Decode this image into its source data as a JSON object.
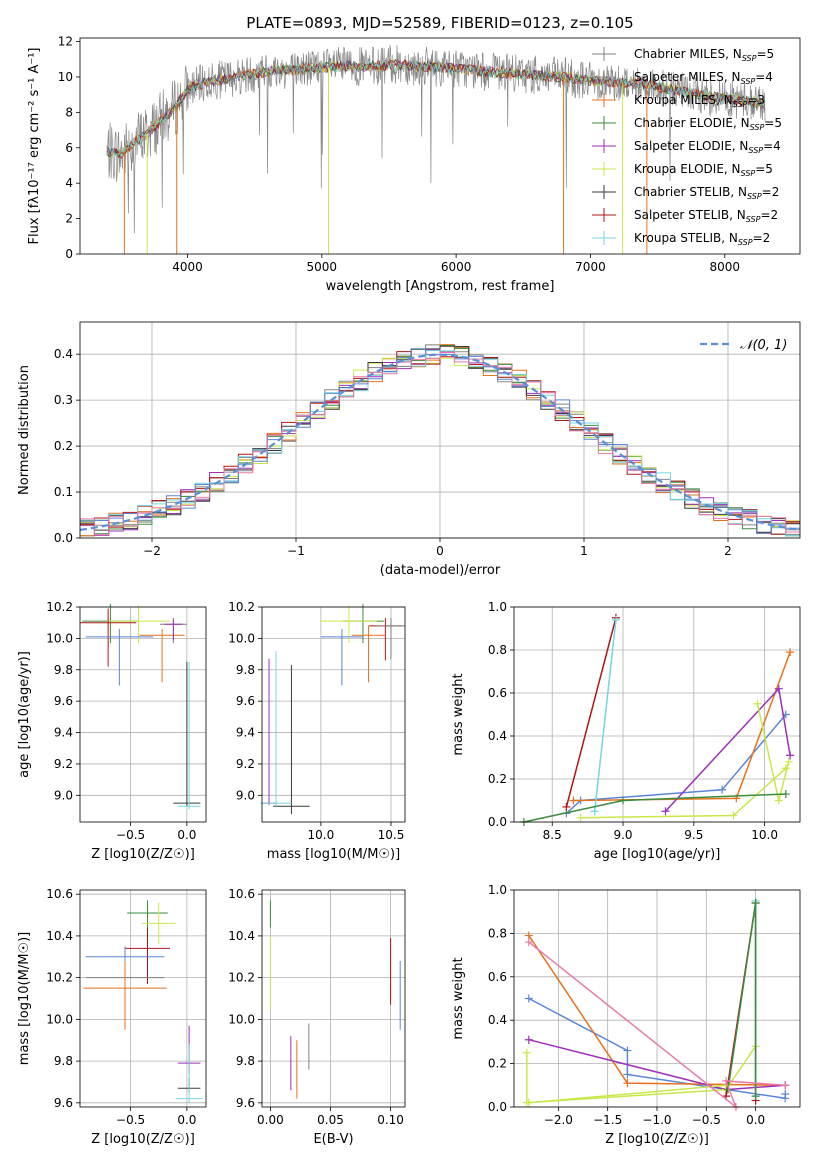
{
  "figure": {
    "title": "PLATE=0893, MJD=52589, FIBERID=0123, z=0.105"
  },
  "colors": {
    "series": [
      "#7f7f7f",
      "#8c8c8c",
      "#e8721c",
      "#3d8c3d",
      "#9e2fb8",
      "#c8e84a",
      "#3a3a3a",
      "#b01515",
      "#74d6e0"
    ],
    "extra_pink": "#e87aa8",
    "extra_blue": "#5b86d6",
    "gaussian": "#5b8fd6"
  },
  "chart_data": [
    {
      "id": "spectrum",
      "type": "line",
      "title": "PLATE=0893, MJD=52589, FIBERID=0123, z=0.105",
      "xlabel": "wavelength [Angstrom, rest frame]",
      "ylabel": "Flux [fλ10⁻¹⁷ erg cm⁻² s⁻¹ A⁻¹]",
      "xlim": [
        3200,
        8560
      ],
      "ylim": [
        0,
        12.2
      ],
      "xticks": [
        4000,
        5000,
        6000,
        7000,
        8000
      ],
      "yticks": [
        0,
        2,
        4,
        6,
        8,
        10,
        12
      ],
      "grid": false,
      "legend_position": "right",
      "continuum_x": [
        3400,
        3500,
        3600,
        3700,
        3800,
        3900,
        4000,
        4100,
        4200,
        4300,
        4400,
        4500,
        4600,
        4700,
        4800,
        4900,
        5000,
        5100,
        5200,
        5300,
        5400,
        5500,
        5600,
        5700,
        5800,
        5900,
        6000,
        6200,
        6400,
        6600,
        6800,
        7000,
        7200,
        7400,
        7600,
        7800,
        8000,
        8200,
        8300
      ],
      "continuum_y": [
        5.8,
        5.6,
        6.3,
        6.8,
        7.5,
        8.2,
        9.3,
        9.6,
        9.8,
        9.9,
        10.1,
        10.2,
        10.3,
        10.4,
        10.4,
        10.5,
        10.5,
        10.6,
        10.6,
        10.6,
        10.6,
        10.7,
        10.7,
        10.6,
        10.6,
        10.5,
        10.5,
        10.3,
        10.2,
        10.1,
        10.0,
        9.8,
        9.7,
        9.6,
        9.3,
        9.0,
        8.8,
        8.6,
        8.5
      ],
      "legend": [
        "Chabrier MILES, N_SSP=5",
        "Salpeter MILES, N_SSP=4",
        "Kroupa MILES, N_SSP=3",
        "Chabrier ELODIE, N_SSP=5",
        "Salpeter ELODIE, N_SSP=4",
        "Kroupa ELODIE, N_SSP=5",
        "Chabrier STELIB, N_SSP=2",
        "Salpeter STELIB, N_SSP=2",
        "Kroupa STELIB, N_SSP=2"
      ]
    },
    {
      "id": "residuals",
      "type": "line",
      "xlabel": "(data-model)/error",
      "ylabel": "Normed distribution",
      "xlim": [
        -2.5,
        2.5
      ],
      "ylim": [
        0,
        0.47
      ],
      "xticks": [
        -2,
        -1,
        0,
        1,
        2
      ],
      "yticks": [
        0.0,
        0.1,
        0.2,
        0.3,
        0.4
      ],
      "grid": true,
      "legend_label": "𝒩(0, 1)",
      "legend_position": "top-right",
      "gaussian": {
        "mean": 0,
        "sigma": 1
      },
      "histogram_bin_width": 0.1
    },
    {
      "id": "age-vs-Z",
      "type": "scatter",
      "xlabel": "Z [log10(Z/Z☉)]",
      "ylabel": "age [log10(age/yr)]",
      "xlim": [
        -0.95,
        0.17
      ],
      "ylim": [
        8.83,
        10.2
      ],
      "xticks": [
        -0.5,
        0.0
      ],
      "yticks": [
        9.0,
        9.2,
        9.4,
        9.6,
        9.8,
        10.0,
        10.2
      ],
      "grid": true,
      "points": [
        {
          "x": -0.68,
          "y": 10.11,
          "xerr": 0.25,
          "yerr": [
            0.14,
            0.11
          ]
        },
        {
          "x": -0.43,
          "y": 10.11,
          "xerr": 0.28,
          "yerr": [
            0.14,
            0.1
          ]
        },
        {
          "x": -0.7,
          "y": 10.1,
          "xerr": 0.25,
          "yerr": [
            0.28,
            0.09
          ]
        },
        {
          "x": -0.6,
          "y": 10.01,
          "xerr": 0.3,
          "yerr": [
            0.31,
            0.05
          ]
        },
        {
          "x": -0.12,
          "y": 10.09,
          "xerr": 0.12,
          "yerr": [
            0.12,
            0.04
          ]
        },
        {
          "x": -0.22,
          "y": 10.02,
          "xerr": 0.2,
          "yerr": [
            0.3,
            0.04
          ]
        },
        {
          "x": -0.12,
          "y": 10.09,
          "xerr": 0.08,
          "yerr": [
            0.1,
            0.03
          ]
        },
        {
          "x": 0.0,
          "y": 8.95,
          "xerr": 0.12,
          "yerr": [
            0.02,
            0.9
          ]
        },
        {
          "x": 0.02,
          "y": 8.93,
          "xerr": 0.1,
          "yerr": [
            0.02,
            0.92
          ]
        }
      ]
    },
    {
      "id": "age-vs-mass",
      "type": "scatter",
      "xlabel": "mass [log10(M/M☉)]",
      "ylabel": "",
      "xlim": [
        9.58,
        10.6
      ],
      "ylim": [
        8.83,
        10.2
      ],
      "xticks": [
        10.0,
        10.5
      ],
      "yticks": [
        9.0,
        9.2,
        9.4,
        9.6,
        9.8,
        10.0,
        10.2
      ],
      "grid": true,
      "points": [
        {
          "x": 10.3,
          "y": 10.11,
          "xerr": 0.15,
          "yerr": [
            0.14,
            0.11
          ]
        },
        {
          "x": 10.2,
          "y": 10.11,
          "xerr": 0.2,
          "yerr": [
            0.14,
            0.1
          ]
        },
        {
          "x": 10.46,
          "y": 10.08,
          "xerr": 0.12,
          "yerr": [
            0.22,
            0.05
          ]
        },
        {
          "x": 10.15,
          "y": 10.01,
          "xerr": 0.15,
          "yerr": [
            0.31,
            0.05
          ]
        },
        {
          "x": 10.5,
          "y": 10.08,
          "xerr": 0.1,
          "yerr": [
            0.21,
            0.05
          ]
        },
        {
          "x": 10.34,
          "y": 10.02,
          "xerr": 0.12,
          "yerr": [
            0.3,
            0.06
          ]
        },
        {
          "x": 9.63,
          "y": 8.95,
          "xerr": 0.05,
          "yerr": [
            0.01,
            0.92
          ]
        },
        {
          "x": 9.79,
          "y": 8.93,
          "xerr": 0.13,
          "yerr": [
            0.05,
            0.9
          ]
        },
        {
          "x": 9.68,
          "y": 8.95,
          "xerr": 0.11,
          "yerr": [
            0.02,
            0.97
          ]
        }
      ]
    },
    {
      "id": "weight-vs-age",
      "type": "line",
      "xlabel": "age [log10(age/yr)]",
      "ylabel": "mass weight",
      "xlim": [
        8.23,
        10.25
      ],
      "ylim": [
        0,
        1.0
      ],
      "xticks": [
        8.5,
        9.0,
        9.5,
        10.0
      ],
      "yticks": [
        0.0,
        0.2,
        0.4,
        0.6,
        0.8,
        1.0
      ],
      "grid": true,
      "series": [
        {
          "x": [
            8.6,
            8.7,
            9.7,
            10.15
          ],
          "y": [
            0.04,
            0.1,
            0.15,
            0.5
          ]
        },
        {
          "x": [
            8.65,
            9.8,
            10.18
          ],
          "y": [
            0.1,
            0.11,
            0.79
          ]
        },
        {
          "x": [
            9.3,
            10.1,
            10.18
          ],
          "y": [
            0.05,
            0.62,
            0.31
          ]
        },
        {
          "x": [
            8.7,
            9.78,
            10.15
          ],
          "y": [
            0.02,
            0.03,
            0.25
          ]
        },
        {
          "x": [
            9.95,
            10.1,
            10.17
          ],
          "y": [
            0.55,
            0.1,
            0.28
          ]
        },
        {
          "x": [
            8.6,
            8.95
          ],
          "y": [
            0.07,
            0.95
          ]
        },
        {
          "x": [
            8.8,
            8.95
          ],
          "y": [
            0.05,
            0.94
          ]
        },
        {
          "x": [
            8.3,
            9.0,
            10.15
          ],
          "y": [
            0.0,
            0.1,
            0.13
          ]
        }
      ]
    },
    {
      "id": "mass-vs-Z",
      "type": "scatter",
      "xlabel": "Z [log10(Z/Z☉)]",
      "ylabel": "mass [log10(M/M☉)]",
      "xlim": [
        -0.95,
        0.17
      ],
      "ylim": [
        9.58,
        10.62
      ],
      "xticks": [
        -0.5,
        0.0
      ],
      "yticks": [
        9.6,
        9.8,
        10.0,
        10.2,
        10.4,
        10.6
      ],
      "grid": true,
      "points": [
        {
          "x": -0.35,
          "y": 10.51,
          "xerr": 0.18,
          "yerr": [
            0.07,
            0.06
          ]
        },
        {
          "x": -0.25,
          "y": 10.46,
          "xerr": 0.15,
          "yerr": [
            0.1,
            0.1
          ]
        },
        {
          "x": -0.35,
          "y": 10.34,
          "xerr": 0.2,
          "yerr": [
            0.17,
            0.1
          ]
        },
        {
          "x": -0.55,
          "y": 10.3,
          "xerr": 0.35,
          "yerr": [
            0.12,
            0.05
          ]
        },
        {
          "x": -0.55,
          "y": 10.2,
          "xerr": 0.35,
          "yerr": [
            0.2,
            0.08
          ]
        },
        {
          "x": -0.55,
          "y": 10.15,
          "xerr": 0.37,
          "yerr": [
            0.2,
            0.13
          ]
        },
        {
          "x": 0.02,
          "y": 9.79,
          "xerr": 0.1,
          "yerr": [
            0.05,
            0.18
          ]
        },
        {
          "x": 0.02,
          "y": 9.67,
          "xerr": 0.1,
          "yerr": [
            0.02,
            0.05
          ]
        },
        {
          "x": 0.02,
          "y": 9.62,
          "xerr": 0.12,
          "yerr": [
            0.02,
            0.26
          ]
        }
      ]
    },
    {
      "id": "mass-vs-ebv",
      "type": "scatter",
      "xlabel": "E(B-V)",
      "ylabel": "",
      "xlim": [
        -0.007,
        0.112
      ],
      "ylim": [
        9.58,
        10.62
      ],
      "xticks": [
        0.0,
        0.05,
        0.1
      ],
      "yticks": [
        9.6,
        9.8,
        10.0,
        10.2,
        10.4,
        10.6
      ],
      "grid": true,
      "points": [
        {
          "x": 0.0,
          "y": 10.51,
          "yerr": [
            0.07,
            0.06
          ]
        },
        {
          "x": 0.0,
          "y": 10.3,
          "yerr": [
            0.25,
            0.1
          ]
        },
        {
          "x": 0.1,
          "y": 10.22,
          "yerr": [
            0.15,
            0.17
          ]
        },
        {
          "x": 0.108,
          "y": 10.12,
          "yerr": [
            0.17,
            0.16
          ]
        },
        {
          "x": 0.032,
          "y": 9.87,
          "yerr": [
            0.11,
            0.11
          ]
        },
        {
          "x": 0.022,
          "y": 9.76,
          "yerr": [
            0.14,
            0.14
          ]
        },
        {
          "x": 0.017,
          "y": 9.79,
          "yerr": [
            0.13,
            0.13
          ]
        }
      ]
    },
    {
      "id": "weight-vs-Z",
      "type": "line",
      "xlabel": "Z [log10(Z/Z☉)]",
      "ylabel": "mass weight",
      "xlim": [
        -2.45,
        0.45
      ],
      "ylim": [
        0,
        1.0
      ],
      "xticks": [
        -2.0,
        -1.5,
        -1.0,
        -0.5,
        0.0
      ],
      "yticks": [
        0.0,
        0.2,
        0.4,
        0.6,
        0.8,
        1.0
      ],
      "grid": true,
      "series": [
        {
          "x": [
            -2.3,
            -1.3,
            -1.3,
            0.3,
            0.3
          ],
          "y": [
            0.5,
            0.26,
            0.15,
            0.04,
            0.06
          ]
        },
        {
          "x": [
            -2.3,
            -1.3,
            0.3
          ],
          "y": [
            0.79,
            0.11,
            0.1
          ]
        },
        {
          "x": [
            -2.3,
            -0.3,
            0.3
          ],
          "y": [
            0.31,
            0.08,
            0.1
          ]
        },
        {
          "x": [
            -2.3,
            -0.3,
            -0.3
          ],
          "y": [
            0.02,
            0.1,
            0.1
          ]
        },
        {
          "x": [
            -2.32,
            -2.32,
            -0.3,
            0.0
          ],
          "y": [
            0.25,
            0.02,
            0.08,
            0.28
          ]
        },
        {
          "x": [
            -0.3,
            0.0,
            0.0
          ],
          "y": [
            0.05,
            0.94,
            0.03
          ]
        },
        {
          "x": [
            0.0,
            0.0
          ],
          "y": [
            0.95,
            0.05
          ]
        },
        {
          "x": [
            -0.28,
            0.0,
            0.0
          ],
          "y": [
            0.08,
            0.94,
            0.05
          ]
        },
        {
          "x": [
            -2.3,
            -0.2,
            -0.3,
            0.3
          ],
          "y": [
            0.76,
            0.0,
            0.12,
            0.1
          ]
        }
      ]
    }
  ]
}
